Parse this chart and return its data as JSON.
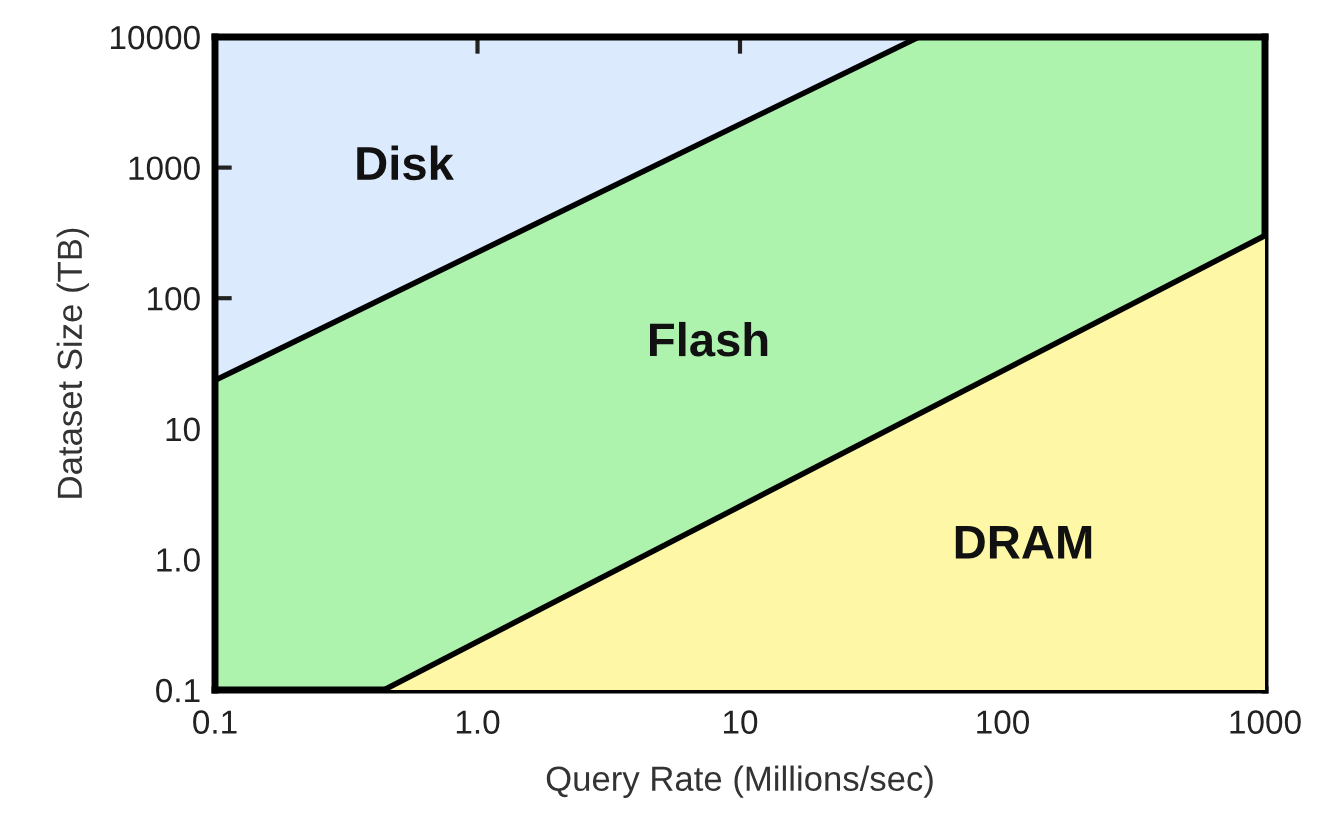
{
  "chart_data": {
    "type": "area",
    "xlabel": "Query Rate (Millions/sec)",
    "ylabel": "Dataset Size (TB)",
    "log": "xy",
    "xlim": [
      0.1,
      1000
    ],
    "ylim": [
      0.1,
      10000
    ],
    "xticks": [
      0.1,
      {
        "value": 1,
        "label": "1.0"
      },
      10,
      100,
      1000
    ],
    "yticks": [
      0.1,
      {
        "value": 1,
        "label": "1.0"
      },
      10,
      100,
      1000,
      10000
    ],
    "series": [
      {
        "name": "Disk",
        "color": "#dbeafc",
        "x": [
          0.1,
          48
        ],
        "values": [
          10000,
          10000
        ]
      },
      {
        "name": "Flash",
        "color": "#adf2ad",
        "x": [
          0.1,
          48,
          1000
        ],
        "values": [
          23.5,
          10000,
          10000
        ]
      },
      {
        "name": "DRAM",
        "color": "#fdf7a6",
        "x": [
          0.44,
          1000
        ],
        "values": [
          0.1,
          302
        ]
      }
    ]
  }
}
